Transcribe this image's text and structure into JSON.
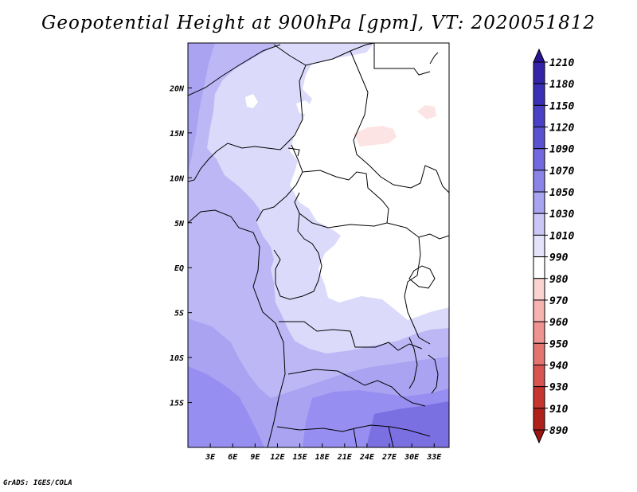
{
  "title": "Geopotential Height at 900hPa [gpm], VT: 2020051812",
  "footer": "GrADS: IGES/COLA",
  "map": {
    "lon_range": [
      0,
      35
    ],
    "lat_range": [
      -20,
      25
    ],
    "x_ticks": [
      "3E",
      "6E",
      "9E",
      "12E",
      "15E",
      "18E",
      "21E",
      "24E",
      "27E",
      "30E",
      "33E"
    ],
    "y_ticks": [
      "20N",
      "15N",
      "10N",
      "5N",
      "EQ",
      "5S",
      "10S",
      "15S"
    ]
  },
  "colorbar": {
    "levels": [
      "1210",
      "1180",
      "1150",
      "1120",
      "1090",
      "1070",
      "1050",
      "1030",
      "1010",
      "990",
      "980",
      "970",
      "960",
      "950",
      "940",
      "930",
      "910",
      "890"
    ],
    "colors": [
      "#2a1593",
      "#3424a8",
      "#3b30b5",
      "#4a40c5",
      "#5a52d0",
      "#7268df",
      "#8b84e8",
      "#a9a4f0",
      "#cac7f7",
      "#e4e3fb",
      "#ffffff",
      "#fbd4d2",
      "#f6b3b0",
      "#ee9390",
      "#e37470",
      "#d75450",
      "#c7352f",
      "#b0211b",
      "#9a1612"
    ]
  },
  "colors": {
    "outline": "#000000",
    "background": "#ffffff"
  }
}
